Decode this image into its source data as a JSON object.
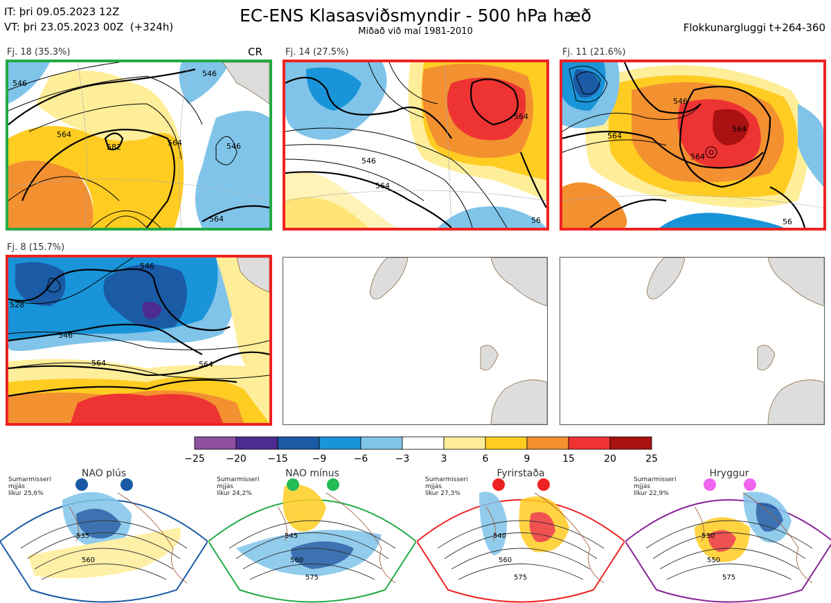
{
  "header": {
    "it_line": "IT: þri 09.05.2023 12Z",
    "vt_line": "VT: þri 23.05.2023 00Z  (+324h)",
    "title": "EC-ENS Klasasviðsmyndir - 500 hPa hæð",
    "subtitle": "Miðað við maí 1981-2010",
    "window": "Flokkunargluggi t+264-360"
  },
  "panels": [
    {
      "label": "Fj. 18 (35.3%)",
      "tag": "CR",
      "border_color": "#22aa44",
      "contours": [
        "546",
        "564",
        "582",
        "564",
        "546",
        "564",
        "546"
      ]
    },
    {
      "label": "Fj. 14 (27.5%)",
      "border_color": "#ee2222",
      "contours": [
        "546",
        "564",
        "564",
        "56"
      ]
    },
    {
      "label": "Fj. 11 (21.6%)",
      "border_color": "#ee2222",
      "contours": [
        "546",
        "564",
        "564",
        "564",
        "56"
      ]
    },
    {
      "label": "Fj. 8 (15.7%)",
      "border_color": "#ee2222",
      "contours": [
        "528",
        "546",
        "546",
        "564",
        "564"
      ]
    }
  ],
  "colorbar": {
    "ticks": [
      "−25",
      "−20",
      "−15",
      "−9",
      "−6",
      "−3",
      "3",
      "6",
      "9",
      "15",
      "20",
      "25"
    ],
    "colors": [
      "#8e4f9f",
      "#4e2c8f",
      "#1b5aa5",
      "#1a94d8",
      "#80c4ea",
      "#ffffff",
      "#ffee99",
      "#ffcc22",
      "#f39030",
      "#ee3333",
      "#aa1111"
    ]
  },
  "regimes": [
    {
      "name": "NAO plús",
      "season": "Sumarmisseri",
      "type": "mjjás",
      "prob": "líkur 25,6%",
      "color": "#1a5aa5",
      "dot_color": "#1a5aa5",
      "contours": [
        "535",
        "560"
      ]
    },
    {
      "name": "NAO mínus",
      "season": "Sumarmisseri",
      "type": "mjjás",
      "prob": "líkur 24,2%",
      "color": "#22aa44",
      "dot_color": "#22bb55",
      "contours": [
        "545",
        "560",
        "575"
      ]
    },
    {
      "name": "Fyrirstaða",
      "season": "Sumarmisseri",
      "type": "mjjás",
      "prob": "líkur 27,3%",
      "color": "#ee2222",
      "dot_color": "#ee2222",
      "contours": [
        "540",
        "560",
        "575"
      ]
    },
    {
      "name": "Hryggur",
      "season": "Sumarmisseri",
      "type": "mjjás",
      "prob": "líkur 22,9%",
      "color": "#882299",
      "dot_color": "#ee66ee",
      "contours": [
        "530",
        "550",
        "575"
      ]
    }
  ]
}
